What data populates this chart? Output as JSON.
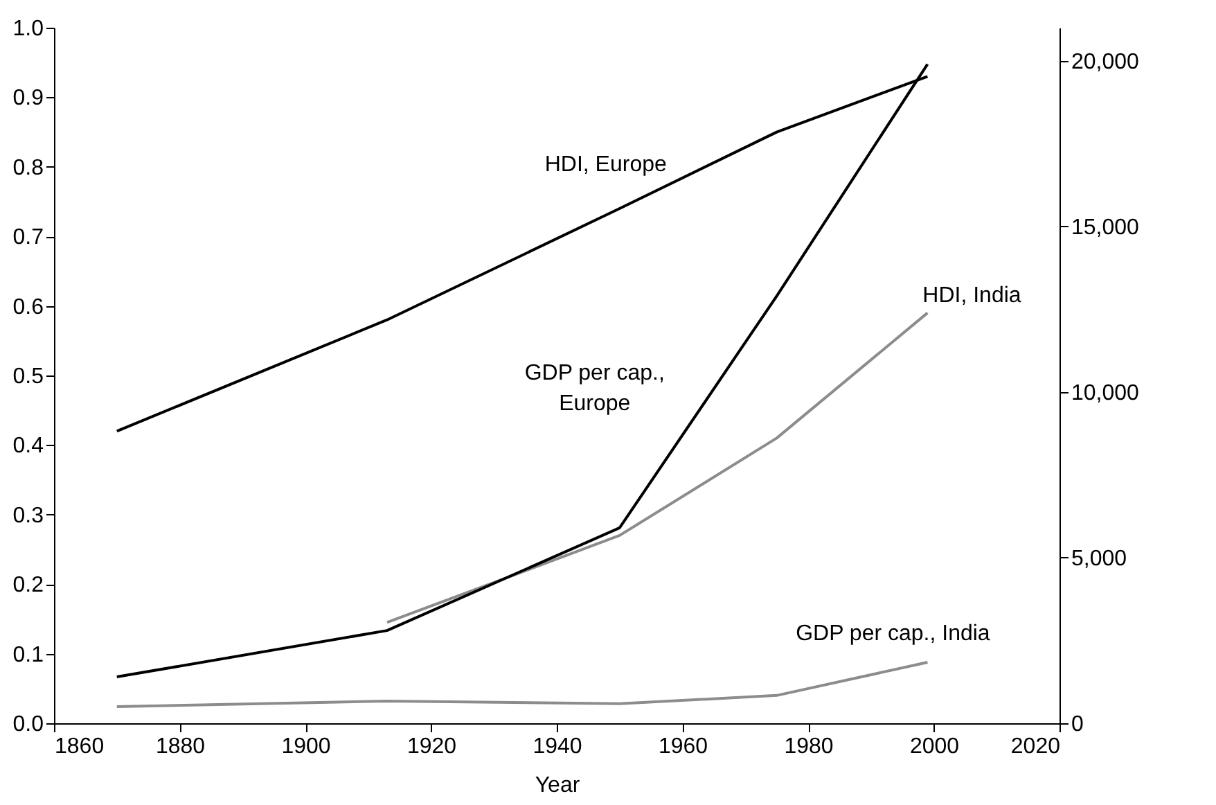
{
  "chart_data": {
    "type": "line",
    "xlabel": "Year",
    "xlim": [
      1860,
      2020
    ],
    "xticks": [
      1860,
      1880,
      1900,
      1920,
      1940,
      1960,
      1980,
      2000,
      2020
    ],
    "ylim": [
      0,
      1
    ],
    "yticks": [
      {
        "value": 0,
        "label": "0.0"
      },
      {
        "value": 0.1,
        "label": "0.1"
      },
      {
        "value": 0.2,
        "label": "0.2"
      },
      {
        "value": 0.3,
        "label": "0.3"
      },
      {
        "value": 0.4,
        "label": "0.4"
      },
      {
        "value": 0.5,
        "label": "0.5"
      },
      {
        "value": 0.6,
        "label": "0.6"
      },
      {
        "value": 0.7,
        "label": "0.7"
      },
      {
        "value": 0.8,
        "label": "0.8"
      },
      {
        "value": 0.9,
        "label": "0.9"
      },
      {
        "value": 1,
        "label": "1.0"
      }
    ],
    "y2lim": [
      0,
      21000
    ],
    "y2ticks": [
      0,
      {
        "value": 5000,
        "label": "5,000"
      },
      {
        "value": 10000,
        "label": "10,000"
      },
      {
        "value": 15000,
        "label": "15,000"
      },
      {
        "value": 20000,
        "label": "20,000"
      }
    ],
    "series": [
      {
        "name": "HDI, Europe",
        "color": "#000000",
        "x": [
          1870,
          1913,
          1950,
          1975,
          1999
        ],
        "values": [
          0.42,
          0.58,
          0.74,
          0.85,
          0.93
        ]
      },
      {
        "name": "GDP per cap.,\nEurope",
        "color": "#000000",
        "axis": "y2",
        "x": [
          1870,
          1913,
          1950,
          1975,
          1999
        ],
        "values": [
          1400,
          2800,
          5900,
          12900,
          19900
        ]
      },
      {
        "name": "HDI, India",
        "color": "#8c8c8c",
        "x": [
          1913,
          1950,
          1975,
          1999
        ],
        "values": [
          0.145,
          0.27,
          0.41,
          0.59
        ]
      },
      {
        "name": "GDP per cap., India",
        "color": "#8c8c8c",
        "axis": "y2",
        "x": [
          1870,
          1913,
          1950,
          1975,
          1999
        ],
        "values": [
          500,
          670,
          590,
          840,
          1840
        ]
      }
    ]
  }
}
